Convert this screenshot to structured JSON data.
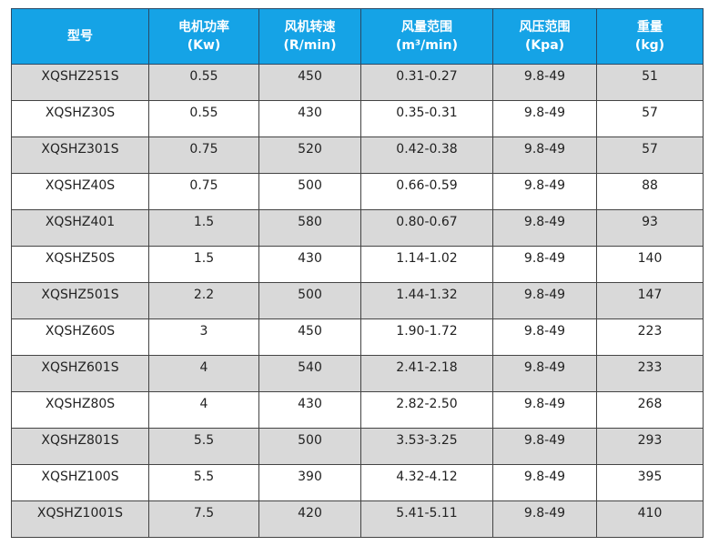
{
  "headers": [
    {
      "line1": "型号",
      "line2": ""
    },
    {
      "line1": "电机功率",
      "line2": "(Kw)"
    },
    {
      "line1": "风机转速",
      "line2": "(R/min)"
    },
    {
      "line1": "风量范围",
      "line2": "(m³/min)"
    },
    {
      "line1": "风压范围",
      "line2": "(Kpa)"
    },
    {
      "line1": "重量",
      "line2": "(kg)"
    }
  ],
  "rows": [
    [
      "XQSHZ251S",
      "0.55",
      "450",
      "0.31-0.27",
      "9.8-49",
      "51"
    ],
    [
      "XQSHZ30S",
      "0.55",
      "430",
      "0.35-0.31",
      "9.8-49",
      "57"
    ],
    [
      "XQSHZ301S",
      "0.75",
      "520",
      "0.42-0.38",
      "9.8-49",
      "57"
    ],
    [
      "XQSHZ40S",
      "0.75",
      "500",
      "0.66-0.59",
      "9.8-49",
      "88"
    ],
    [
      "XQSHZ401",
      "1.5",
      "580",
      "0.80-0.67",
      "9.8-49",
      "93"
    ],
    [
      "XQSHZ50S",
      "1.5",
      "430",
      "1.14-1.02",
      "9.8-49",
      "140"
    ],
    [
      "XQSHZ501S",
      "2.2",
      "500",
      "1.44-1.32",
      "9.8-49",
      "147"
    ],
    [
      "XQSHZ60S",
      "3",
      "450",
      "1.90-1.72",
      "9.8-49",
      "223"
    ],
    [
      "XQSHZ601S",
      "4",
      "540",
      "2.41-2.18",
      "9.8-49",
      "233"
    ],
    [
      "XQSHZ80S",
      "4",
      "430",
      "2.82-2.50",
      "9.8-49",
      "268"
    ],
    [
      "XQSHZ801S",
      "5.5",
      "500",
      "3.53-3.25",
      "9.8-49",
      "293"
    ],
    [
      "XQSHZ100S",
      "5.5",
      "390",
      "4.32-4.12",
      "9.8-49",
      "395"
    ],
    [
      "XQSHZ1001S",
      "7.5",
      "420",
      "5.41-5.11",
      "9.8-49",
      "410"
    ]
  ],
  "colors": {
    "header": "#15a3e6",
    "stripe": "#d9d9d9"
  }
}
